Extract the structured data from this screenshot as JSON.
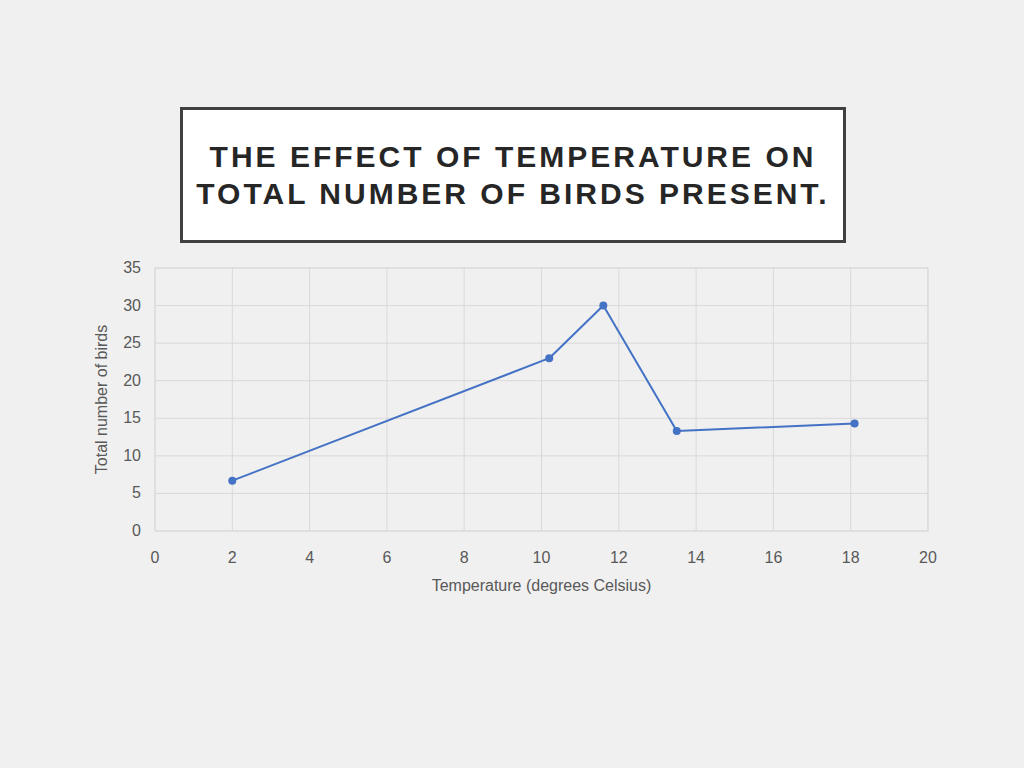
{
  "chart_data": {
    "type": "line",
    "title": "THE EFFECT OF TEMPERATURE ON TOTAL NUMBER OF BIRDS PRESENT.",
    "x_label": "Temperature (degrees Celsius)",
    "y_label": "Total number of birds",
    "x": [
      2,
      10.2,
      11.6,
      13.5,
      18.1
    ],
    "values": [
      6.7,
      23,
      30,
      13.3,
      14.3
    ],
    "color": "#4472c4",
    "marker": "circle",
    "line_style": "solid",
    "xlim": [
      0,
      20
    ],
    "xticks": [
      0,
      2,
      4,
      6,
      8,
      10,
      12,
      14,
      16,
      18,
      20
    ],
    "ylim": [
      0,
      35
    ],
    "yticks": [
      0,
      5,
      10,
      15,
      20,
      25,
      30,
      35
    ],
    "grid": true
  }
}
